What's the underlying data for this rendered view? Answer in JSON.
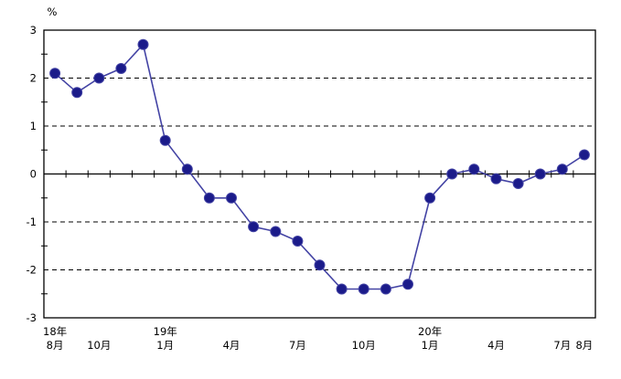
{
  "chart_data": {
    "type": "line",
    "title": "",
    "ylabel": "%",
    "xlabel": "",
    "ylim": [
      -3,
      3
    ],
    "y_tick_labels": [
      "3",
      "2",
      "1",
      "0",
      "-1",
      "-2",
      "-3"
    ],
    "y_tick_values": [
      3,
      2,
      1,
      0,
      -1,
      -2,
      -3
    ],
    "y_minor_tick_values": [
      2.5,
      1.5,
      0.5,
      -0.5,
      -1.5,
      -2.5
    ],
    "gridline_values": [
      2,
      1,
      -1,
      -2
    ],
    "grid_style": "dashed",
    "legend": "none",
    "values": [
      2.1,
      1.7,
      2.0,
      2.2,
      2.7,
      0.7,
      0.1,
      -0.5,
      -0.5,
      -1.1,
      -1.2,
      -1.4,
      -1.9,
      -2.4,
      -2.4,
      -2.4,
      -2.3,
      -0.5,
      0.0,
      0.1,
      -0.1,
      -0.2,
      0.0,
      0.1,
      0.4
    ],
    "x_labels": [
      {
        "index": 0,
        "year": "18年",
        "month": "8月"
      },
      {
        "index": 2,
        "year": "",
        "month": "10月"
      },
      {
        "index": 5,
        "year": "19年",
        "month": "1月"
      },
      {
        "index": 8,
        "year": "",
        "month": "4月"
      },
      {
        "index": 11,
        "year": "",
        "month": "7月"
      },
      {
        "index": 14,
        "year": "",
        "month": "10月"
      },
      {
        "index": 17,
        "year": "20年",
        "month": "1月"
      },
      {
        "index": 20,
        "year": "",
        "month": "4月"
      },
      {
        "index": 23,
        "year": "",
        "month": "7月"
      },
      {
        "index": 24,
        "year": "",
        "month": "8月"
      }
    ],
    "colors": {
      "line": "#4343a4",
      "marker": "#1b1b8a",
      "axis": "#000000",
      "grid": "#000000",
      "background": "#ffffff"
    }
  }
}
